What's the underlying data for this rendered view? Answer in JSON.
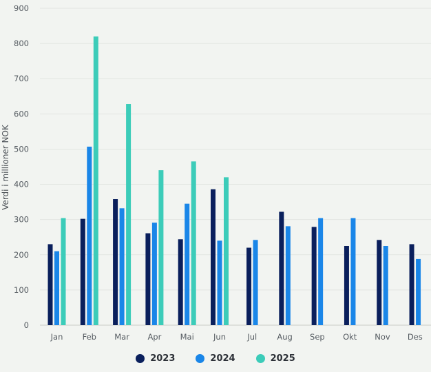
{
  "chart_data": {
    "type": "bar",
    "ylabel": "Verdi i millioner NOK",
    "xlabel": "",
    "ylim": [
      0,
      900
    ],
    "yticks": [
      0,
      100,
      200,
      300,
      400,
      500,
      600,
      700,
      800,
      900
    ],
    "grid": true,
    "legend_position": "bottom",
    "categories": [
      "Jan",
      "Feb",
      "Mar",
      "Apr",
      "Mai",
      "Jun",
      "Jul",
      "Aug",
      "Sep",
      "Okt",
      "Nov",
      "Des"
    ],
    "series": [
      {
        "name": "2023",
        "color": "#0a1f5c",
        "values": [
          230,
          302,
          358,
          261,
          244,
          386,
          220,
          322,
          279,
          225,
          242,
          230
        ]
      },
      {
        "name": "2024",
        "color": "#1a86e8",
        "values": [
          210,
          507,
          332,
          291,
          345,
          240,
          242,
          281,
          304,
          304,
          225,
          188
        ]
      },
      {
        "name": "2025",
        "color": "#3cccb9",
        "values": [
          304,
          820,
          628,
          440,
          465,
          420,
          null,
          null,
          null,
          null,
          null,
          null
        ]
      }
    ]
  }
}
